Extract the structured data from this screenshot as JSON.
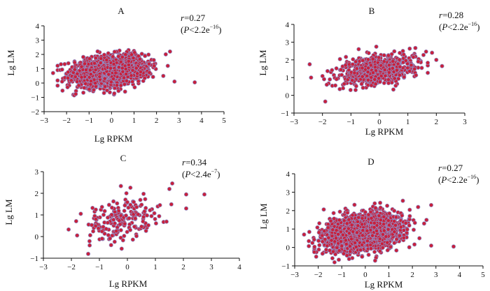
{
  "figure": {
    "colors": {
      "point_fill": "#c8203c",
      "point_stroke": "#8e93cc",
      "axis": "#111111"
    }
  },
  "chart_data": [
    {
      "type": "scatter",
      "panel": "A",
      "title": "A",
      "xlabel": "Lg RPKM",
      "ylabel": "Lg LM",
      "xlim": [
        -3,
        5
      ],
      "ylim": [
        -2,
        4
      ],
      "xticks": [
        "−3",
        "−2",
        "−1",
        "0",
        "1",
        "2",
        "3",
        "4",
        "5"
      ],
      "yticks": [
        "−2",
        "−1",
        "0",
        "1",
        "2",
        "3",
        "4"
      ],
      "r_label": "=0.27",
      "p_label": "<2.2e",
      "p_exp": "−16",
      "cloud": {
        "n": 1800,
        "x_mean": -0.1,
        "x_sd": 0.8,
        "y_mean": 0.85,
        "y_sd": 0.52,
        "corr": 0.27,
        "x_range": [
          -2.4,
          2.6
        ],
        "y_range": [
          -1.0,
          3.0
        ]
      },
      "outliers": [
        [
          -2.6,
          0.7
        ],
        [
          2.8,
          0.1
        ],
        [
          3.7,
          0.05
        ],
        [
          2.5,
          1.2
        ],
        [
          2.6,
          2.2
        ],
        [
          -2.2,
          0.1
        ],
        [
          2.3,
          0.5
        ]
      ]
    },
    {
      "type": "scatter",
      "panel": "B",
      "title": "B",
      "xlabel": "Lg RPKM",
      "ylabel": "Lg LM",
      "xlim": [
        -3,
        3
      ],
      "ylim": [
        -1,
        4
      ],
      "xticks": [
        "−3",
        "−2",
        "−1",
        "0",
        "1",
        "2",
        "3"
      ],
      "yticks": [
        "−1",
        "0",
        "1",
        "2",
        "3",
        "4"
      ],
      "r_label": "=0.28",
      "p_label": "<2.2e",
      "p_exp": "−16",
      "cloud": {
        "n": 700,
        "x_mean": -0.05,
        "x_sd": 0.65,
        "y_mean": 1.45,
        "y_sd": 0.42,
        "corr": 0.28,
        "x_range": [
          -2.0,
          1.7
        ],
        "y_range": [
          0.3,
          2.8
        ]
      },
      "outliers": [
        [
          -2.4,
          1.0
        ],
        [
          -2.45,
          1.75
        ],
        [
          -1.9,
          -0.35
        ],
        [
          2.2,
          1.65
        ],
        [
          2.0,
          2.0
        ],
        [
          1.85,
          2.4
        ],
        [
          -1.85,
          0.6
        ]
      ]
    },
    {
      "type": "scatter",
      "panel": "C",
      "title": "C",
      "xlabel": "Lg RPKM",
      "ylabel": "Lg LM",
      "xlim": [
        -3,
        4
      ],
      "ylim": [
        -1,
        3
      ],
      "xticks": [
        "−3",
        "−2",
        "−1",
        "0",
        "1",
        "2",
        "3",
        "4"
      ],
      "yticks": [
        "−1",
        "0",
        "1",
        "2",
        "3"
      ],
      "r_label": "=0.34",
      "p_label": "<2.4e",
      "p_exp": "−7",
      "cloud": {
        "n": 190,
        "x_mean": -0.2,
        "x_sd": 0.75,
        "y_mean": 0.8,
        "y_sd": 0.55,
        "corr": 0.34,
        "x_range": [
          -2.1,
          1.8
        ],
        "y_range": [
          -0.7,
          2.6
        ]
      },
      "outliers": [
        [
          2.75,
          1.95
        ],
        [
          2.1,
          1.95
        ],
        [
          1.5,
          2.2
        ],
        [
          -1.4,
          -0.8
        ],
        [
          2.1,
          1.3
        ]
      ]
    },
    {
      "type": "scatter",
      "panel": "D",
      "title": "D",
      "xlabel": "Lg RPKM",
      "ylabel": "Lg LM",
      "xlim": [
        -3,
        5
      ],
      "ylim": [
        -1,
        4
      ],
      "xticks": [
        "−3",
        "−2",
        "−1",
        "0",
        "1",
        "2",
        "3",
        "4",
        "5"
      ],
      "yticks": [
        "−1",
        "0",
        "1",
        "2",
        "3",
        "4"
      ],
      "r_label": "=0.27",
      "p_label": "<2.2e",
      "p_exp": "−16",
      "cloud": {
        "n": 1800,
        "x_mean": -0.1,
        "x_sd": 0.8,
        "y_mean": 0.85,
        "y_sd": 0.52,
        "corr": 0.27,
        "x_range": [
          -2.4,
          2.6
        ],
        "y_range": [
          -0.9,
          2.9
        ]
      },
      "outliers": [
        [
          -2.6,
          0.7
        ],
        [
          2.8,
          0.1
        ],
        [
          3.75,
          0.05
        ],
        [
          2.5,
          1.3
        ],
        [
          2.8,
          2.3
        ],
        [
          2.3,
          0.5
        ]
      ]
    }
  ]
}
